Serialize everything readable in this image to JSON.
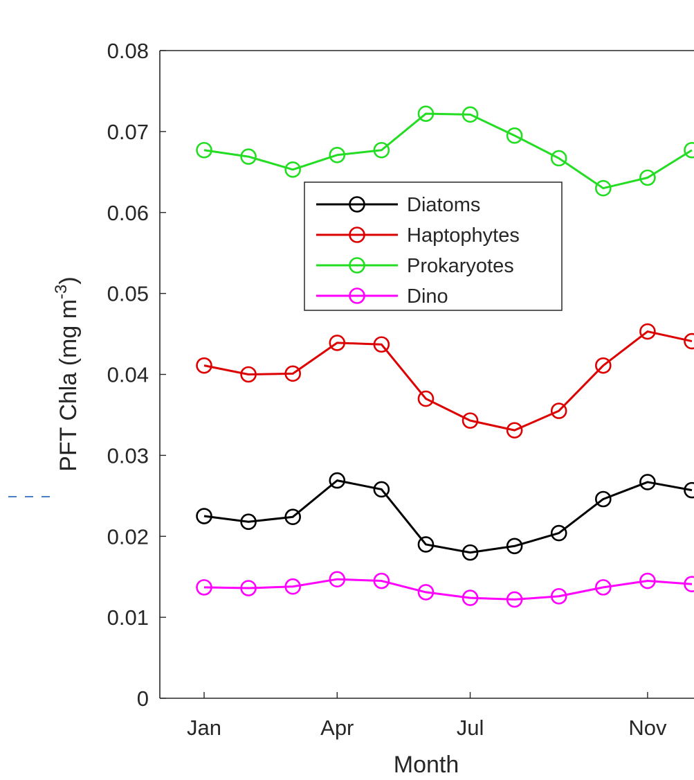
{
  "chart_data": {
    "type": "line",
    "title": "",
    "xlabel": "Month",
    "ylabel": "PFT Chla (mg m",
    "ylabel_superscript": "-3",
    "ylabel_close": ")",
    "x": [
      1,
      2,
      3,
      4,
      5,
      6,
      7,
      8,
      9,
      10,
      11,
      12
    ],
    "xlim": [
      1,
      12
    ],
    "x_ticks": [
      1,
      4,
      7,
      11
    ],
    "x_tick_labels": [
      "Jan",
      "Apr",
      "Jul",
      "Nov"
    ],
    "ylim": [
      0,
      0.08
    ],
    "y_ticks": [
      0,
      0.01,
      0.02,
      0.03,
      0.04,
      0.05,
      0.06,
      0.07,
      0.08
    ],
    "y_tick_labels": [
      "0",
      "0.01",
      "0.02",
      "0.03",
      "0.04",
      "0.05",
      "0.06",
      "0.07",
      "0.08"
    ],
    "grid": false,
    "legend_position": "upper-middle",
    "marker": "open-circle",
    "series": [
      {
        "name": "Diatoms",
        "color": "#000000",
        "values": [
          0.0225,
          0.0218,
          0.0224,
          0.0269,
          0.0258,
          0.019,
          0.018,
          0.0188,
          0.0204,
          0.0246,
          0.0267,
          0.0257
        ]
      },
      {
        "name": "Haptophytes",
        "color": "#dd0000",
        "values": [
          0.0411,
          0.04,
          0.0401,
          0.0439,
          0.0437,
          0.037,
          0.0343,
          0.0331,
          0.0355,
          0.0411,
          0.0453,
          0.0441
        ]
      },
      {
        "name": "Prokaryotes",
        "color": "#22dd22",
        "values": [
          0.0677,
          0.0669,
          0.0653,
          0.0671,
          0.0677,
          0.0722,
          0.0721,
          0.0695,
          0.0667,
          0.063,
          0.0643,
          0.0677
        ]
      },
      {
        "name": "Dino",
        "color": "#ff00ff",
        "values": [
          0.0137,
          0.0136,
          0.0138,
          0.0147,
          0.0145,
          0.0131,
          0.0124,
          0.0122,
          0.0126,
          0.0137,
          0.0145,
          0.0141
        ]
      }
    ]
  },
  "colors": {
    "axis": "#262626",
    "dash_marker": "#4a7fc8"
  }
}
